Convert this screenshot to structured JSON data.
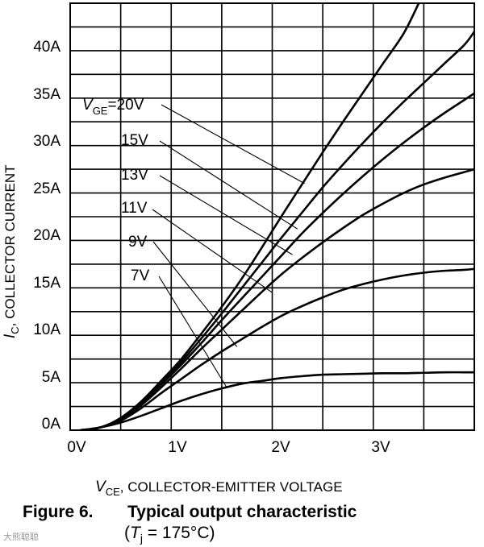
{
  "chart_data": {
    "type": "line",
    "title": "Typical output characteristic",
    "xlabel_var": "V",
    "xlabel_sub": "CE",
    "xlabel_text": ", COLLECTOR-EMITTER VOLTAGE",
    "ylabel_var": "I",
    "ylabel_sub": "C",
    "ylabel_text": ", COLLECTOR CURRENT",
    "xlim": [
      0,
      4
    ],
    "ylim": [
      0,
      45
    ],
    "x_ticks": [
      0,
      1,
      2,
      3
    ],
    "x_tick_labels": [
      "0V",
      "1V",
      "2V",
      "3V"
    ],
    "y_ticks": [
      0,
      5,
      10,
      15,
      20,
      25,
      30,
      35,
      40
    ],
    "y_tick_labels": [
      "0A",
      "5A",
      "10A",
      "15A",
      "20A",
      "25A",
      "30A",
      "35A",
      "40A"
    ],
    "x_minor_step": 0.5,
    "y_minor_step": 2.5,
    "grid": true,
    "series": [
      {
        "name": "20V",
        "label_prefix": "V",
        "label_sub": "GE",
        "label_suffix": "=20V",
        "x": [
          0.1,
          0.3,
          0.5,
          0.7,
          0.9,
          1.1,
          1.3,
          1.5,
          1.7,
          1.9,
          2.1,
          2.3,
          2.5,
          2.7,
          2.9,
          3.1,
          3.3,
          3.45
        ],
        "y": [
          0,
          0.3,
          1.3,
          3.0,
          5.2,
          7.5,
          10.2,
          13.0,
          16.0,
          19.3,
          22.7,
          26.0,
          29.3,
          32.5,
          35.6,
          38.7,
          41.8,
          45.0
        ],
        "label_at": [
          2.32,
          26.0
        ]
      },
      {
        "name": "15V",
        "label_prefix": "",
        "label_sub": "",
        "label_suffix": "15V",
        "x": [
          0.1,
          0.3,
          0.5,
          0.7,
          0.9,
          1.1,
          1.3,
          1.5,
          1.7,
          1.9,
          2.1,
          2.3,
          2.5,
          2.7,
          2.9,
          3.1,
          3.3,
          3.5,
          3.7,
          3.9,
          4.0
        ],
        "y": [
          0,
          0.3,
          1.2,
          2.9,
          5.0,
          7.2,
          9.7,
          12.3,
          15.0,
          17.7,
          20.4,
          23.0,
          25.6,
          28.0,
          30.3,
          32.5,
          34.6,
          36.6,
          38.6,
          40.6,
          42.0
        ],
        "label_at": [
          2.25,
          21.2
        ]
      },
      {
        "name": "13V",
        "label_prefix": "",
        "label_sub": "",
        "label_suffix": "13V",
        "x": [
          0.1,
          0.3,
          0.5,
          0.7,
          0.9,
          1.1,
          1.3,
          1.5,
          1.7,
          1.9,
          2.1,
          2.3,
          2.5,
          2.7,
          2.9,
          3.1,
          3.3,
          3.5,
          3.7,
          3.9,
          4.0
        ],
        "y": [
          0,
          0.3,
          1.2,
          2.8,
          4.8,
          6.9,
          9.2,
          11.6,
          13.9,
          16.2,
          18.5,
          20.8,
          22.9,
          24.9,
          26.8,
          28.6,
          30.3,
          31.9,
          33.4,
          34.8,
          35.5
        ],
        "label_at": [
          2.2,
          18.5
        ]
      },
      {
        "name": "11V",
        "label_prefix": "",
        "label_sub": "",
        "label_suffix": "11V",
        "x": [
          0.1,
          0.3,
          0.5,
          0.7,
          0.9,
          1.1,
          1.3,
          1.5,
          1.7,
          1.9,
          2.1,
          2.3,
          2.5,
          2.7,
          2.9,
          3.1,
          3.3,
          3.5,
          3.7,
          3.9,
          4.0
        ],
        "y": [
          0,
          0.3,
          1.1,
          2.6,
          4.5,
          6.5,
          8.6,
          10.6,
          12.6,
          14.6,
          16.5,
          18.2,
          19.8,
          21.3,
          22.7,
          23.9,
          25.0,
          25.9,
          26.6,
          27.2,
          27.5
        ],
        "label_at": [
          2.0,
          14.5
        ]
      },
      {
        "name": "9V",
        "label_prefix": "",
        "label_sub": "",
        "label_suffix": "9V",
        "x": [
          0.1,
          0.3,
          0.5,
          0.7,
          0.9,
          1.1,
          1.3,
          1.5,
          1.7,
          1.9,
          2.1,
          2.3,
          2.5,
          2.7,
          2.9,
          3.1,
          3.3,
          3.5,
          3.7,
          3.9,
          4.0
        ],
        "y": [
          0,
          0.3,
          1.0,
          2.3,
          3.9,
          5.4,
          6.9,
          8.3,
          9.6,
          10.9,
          12.1,
          13.1,
          14.0,
          14.8,
          15.4,
          15.9,
          16.3,
          16.6,
          16.8,
          16.9,
          17.0
        ],
        "label_at": [
          1.65,
          8.8
        ]
      },
      {
        "name": "7V",
        "label_prefix": "",
        "label_sub": "",
        "label_suffix": "7V",
        "x": [
          0.1,
          0.3,
          0.5,
          0.7,
          0.9,
          1.1,
          1.3,
          1.5,
          1.7,
          1.9,
          2.1,
          2.3,
          2.5,
          2.7,
          2.9,
          3.1,
          3.3,
          3.5,
          3.7,
          3.9,
          4.0
        ],
        "y": [
          0,
          0.3,
          0.8,
          1.5,
          2.3,
          3.1,
          3.8,
          4.4,
          4.9,
          5.2,
          5.5,
          5.7,
          5.85,
          5.9,
          5.95,
          6.0,
          6.0,
          6.05,
          6.1,
          6.1,
          6.1
        ],
        "label_at": [
          1.55,
          4.5
        ]
      }
    ]
  },
  "caption": {
    "figure": "Figure 6.",
    "title": "Typical output characteristic",
    "condition_prefix": "(",
    "condition_var": "T",
    "condition_sub": "j",
    "condition_rest": " = 175°C)"
  },
  "watermark": "大熊聪聪"
}
